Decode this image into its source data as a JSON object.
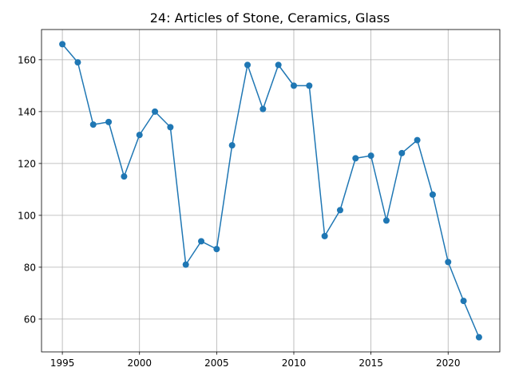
{
  "chart_data": {
    "type": "line",
    "title": "24: Articles of Stone, Ceramics, Glass",
    "xlabel": "",
    "ylabel": "",
    "xlim": [
      1993.65,
      2023.35
    ],
    "ylim": [
      47.35,
      171.65
    ],
    "x_ticks": [
      1995,
      2000,
      2005,
      2010,
      2015,
      2020
    ],
    "x_tick_labels": [
      "1995",
      "2000",
      "2005",
      "2010",
      "2015",
      "2020"
    ],
    "y_ticks": [
      60,
      80,
      100,
      120,
      140,
      160
    ],
    "y_tick_labels": [
      "60",
      "80",
      "100",
      "120",
      "140",
      "160"
    ],
    "grid": true,
    "color": "#1f77b4",
    "marker": "circle",
    "series": [
      {
        "x": [
          1995,
          1996,
          1997,
          1998,
          1999,
          2000,
          2001,
          2002,
          2003,
          2004,
          2005,
          2006,
          2007,
          2008,
          2009,
          2010,
          2011,
          2012,
          2013,
          2014,
          2015,
          2016,
          2017,
          2018,
          2019,
          2020,
          2021,
          2022
        ],
        "values": [
          166,
          159,
          135,
          136,
          115,
          131,
          140,
          134,
          81,
          90,
          87,
          127,
          158,
          141,
          158,
          150,
          150,
          92,
          102,
          122,
          123,
          98,
          124,
          129,
          108,
          82,
          67,
          53
        ]
      }
    ]
  }
}
